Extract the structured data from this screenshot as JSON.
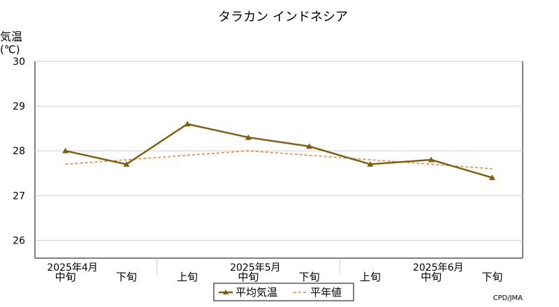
{
  "chart_data": {
    "type": "line",
    "title": "タラカン インドネシア",
    "ylabel_line1": "気温",
    "ylabel_line2": "(℃)",
    "ylim": [
      25.6,
      30
    ],
    "yticks": [
      26,
      27,
      28,
      29,
      30
    ],
    "x_labels": [
      "中旬",
      "下旬",
      "上旬",
      "中旬",
      "下旬",
      "上旬",
      "中旬",
      "下旬"
    ],
    "month_labels": [
      {
        "label": "2025年4月",
        "index": 0
      },
      {
        "label": "2025年5月",
        "index": 3
      },
      {
        "label": "2025年6月",
        "index": 6
      }
    ],
    "grid": true,
    "legend_position": "bottom",
    "series": [
      {
        "name": "平均気温",
        "color": "#806010",
        "style": "solid-triangle-markers",
        "values": [
          28.0,
          27.7,
          28.6,
          28.3,
          28.1,
          27.7,
          27.8,
          27.4
        ]
      },
      {
        "name": "平年値",
        "color": "#f08030",
        "style": "dashed",
        "values": [
          27.7,
          27.8,
          27.9,
          28.0,
          27.9,
          27.8,
          27.7,
          27.6
        ]
      }
    ],
    "credit": "CPD/JMA"
  }
}
